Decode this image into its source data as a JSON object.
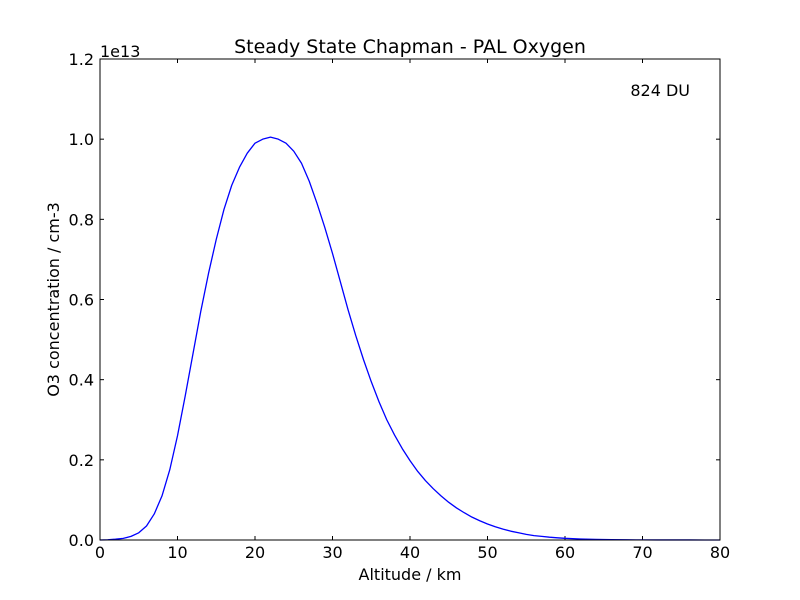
{
  "chart_data": {
    "type": "line",
    "title": "Steady State Chapman - PAL Oxygen",
    "xlabel": "Altitude / km",
    "ylabel": "O3 concentration / cm-3",
    "y_offset_label": "1e13",
    "annotation": "824 DU",
    "xlim": [
      0,
      80
    ],
    "ylim": [
      0,
      1.2
    ],
    "x_ticks": [
      "0",
      "10",
      "20",
      "30",
      "40",
      "50",
      "60",
      "70",
      "80"
    ],
    "y_ticks": [
      "0.0",
      "0.2",
      "0.4",
      "0.6",
      "0.8",
      "1.0",
      "1.2"
    ],
    "grid": false,
    "series": [
      {
        "color": "#0000ff",
        "x": [
          0,
          1,
          2,
          3,
          4,
          5,
          6,
          7,
          8,
          9,
          10,
          11,
          12,
          13,
          14,
          15,
          16,
          17,
          18,
          19,
          20,
          21,
          22,
          23,
          24,
          25,
          26,
          27,
          28,
          29,
          30,
          31,
          32,
          33,
          34,
          35,
          36,
          37,
          38,
          39,
          40,
          41,
          42,
          43,
          44,
          45,
          46,
          47,
          48,
          49,
          50,
          51,
          52,
          53,
          54,
          55,
          56,
          57,
          58,
          59,
          60,
          62,
          64,
          66,
          68,
          70,
          72,
          74,
          76,
          78,
          80
        ],
        "y": [
          0.0,
          0.0005,
          0.002,
          0.004,
          0.009,
          0.018,
          0.035,
          0.065,
          0.11,
          0.175,
          0.26,
          0.36,
          0.465,
          0.57,
          0.665,
          0.75,
          0.825,
          0.885,
          0.93,
          0.965,
          0.99,
          1.0,
          1.005,
          1.0,
          0.99,
          0.97,
          0.94,
          0.895,
          0.84,
          0.78,
          0.715,
          0.645,
          0.575,
          0.51,
          0.45,
          0.395,
          0.345,
          0.3,
          0.262,
          0.228,
          0.198,
          0.171,
          0.148,
          0.128,
          0.11,
          0.094,
          0.08,
          0.068,
          0.057,
          0.048,
          0.04,
          0.033,
          0.027,
          0.022,
          0.018,
          0.014,
          0.011,
          0.009,
          0.007,
          0.0055,
          0.0042,
          0.0025,
          0.0015,
          0.0009,
          0.0005,
          0.0003,
          0.0002,
          0.0001,
          0.0001,
          0.0,
          0.0
        ]
      }
    ]
  }
}
